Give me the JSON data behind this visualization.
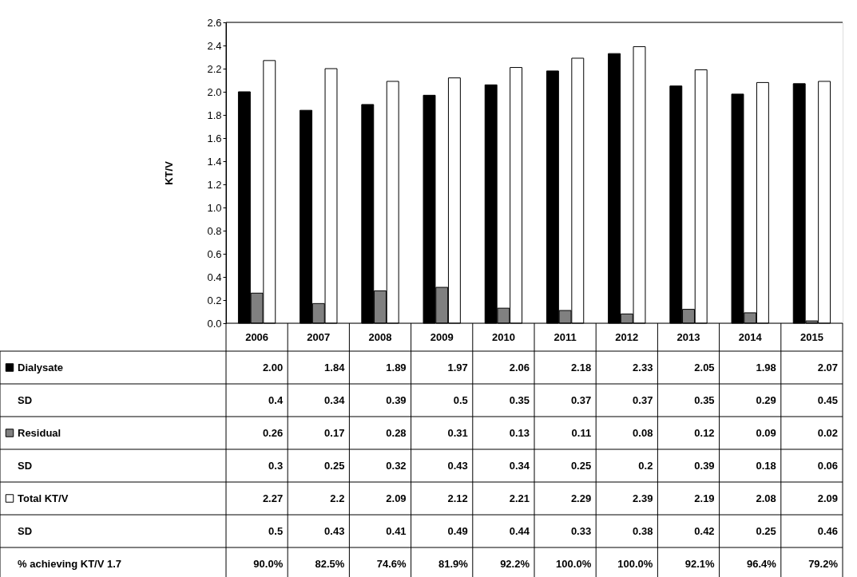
{
  "chart_data": {
    "type": "bar",
    "ylabel": "KT/V",
    "categories": [
      "2006",
      "2007",
      "2008",
      "2009",
      "2010",
      "2011",
      "2012",
      "2013",
      "2014",
      "2015"
    ],
    "series": [
      {
        "name": "Dialysate",
        "color": "#000000",
        "values": [
          2.0,
          1.84,
          1.89,
          1.97,
          2.06,
          2.18,
          2.33,
          2.05,
          1.98,
          2.07
        ],
        "value_labels": [
          "2.00",
          "1.84",
          "1.89",
          "1.97",
          "2.06",
          "2.18",
          "2.33",
          "2.05",
          "1.98",
          "2.07"
        ]
      },
      {
        "name": "Residual",
        "color": "#808080",
        "values": [
          0.26,
          0.17,
          0.28,
          0.31,
          0.13,
          0.11,
          0.08,
          0.12,
          0.09,
          0.02
        ],
        "value_labels": [
          "0.26",
          "0.17",
          "0.28",
          "0.31",
          "0.13",
          "0.11",
          "0.08",
          "0.12",
          "0.09",
          "0.02"
        ]
      },
      {
        "name": "Total KT/V",
        "color": "#ffffff",
        "values": [
          2.27,
          2.2,
          2.09,
          2.12,
          2.21,
          2.29,
          2.39,
          2.19,
          2.08,
          2.09
        ],
        "value_labels": [
          "2.27",
          "2.2",
          "2.09",
          "2.12",
          "2.21",
          "2.29",
          "2.39",
          "2.19",
          "2.08",
          "2.09"
        ]
      }
    ],
    "ylim": [
      0,
      2.6
    ],
    "yticks": [
      {
        "value": 0,
        "label": "0.0"
      },
      {
        "value": 0.2,
        "label": "0.2"
      },
      {
        "value": 0.4,
        "label": "0.4"
      },
      {
        "value": 0.6,
        "label": "0.6"
      },
      {
        "value": 0.8,
        "label": "0.8"
      },
      {
        "value": 1.0,
        "label": "1.0"
      },
      {
        "value": 1.2,
        "label": "1.2"
      },
      {
        "value": 1.4,
        "label": "1.4"
      },
      {
        "value": 1.6,
        "label": "1.6"
      },
      {
        "value": 1.8,
        "label": "1.8"
      },
      {
        "value": 2.0,
        "label": "2.0"
      },
      {
        "value": 2.2,
        "label": "2.2"
      },
      {
        "value": 2.4,
        "label": "2.4"
      },
      {
        "value": 2.6,
        "label": "2.6"
      }
    ],
    "grid": false,
    "legend": "bottom",
    "annotations": [
      "SD",
      "0.4",
      "0.34",
      "0.39",
      "0.5",
      "0.35",
      "0.37",
      "0.37",
      "0.35",
      "0.29",
      "0.45",
      "SD",
      "0.3",
      "0.25",
      "0.32",
      "0.43",
      "0.34",
      "0.25",
      "0.2",
      "0.39",
      "0.18",
      "0.06",
      "SD",
      "0.5",
      "0.43",
      "0.41",
      "0.49",
      "0.44",
      "0.33",
      "0.38",
      "0.42",
      "0.25",
      "0.46",
      "% achieving KT/V 1.7",
      "90.0%",
      "82.5%",
      "74.6%",
      "81.9%",
      "92.2%",
      "100.0%",
      "100.0%",
      "92.1%",
      "96.4%",
      "79.2%"
    ]
  }
}
